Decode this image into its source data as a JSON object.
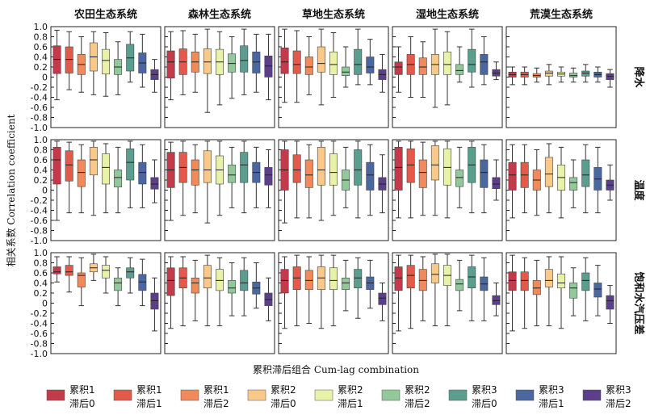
{
  "chart_data": {
    "type": "box",
    "col_titles": [
      "农田生态系统",
      "森林生态系统",
      "草地生态系统",
      "湿地生态系统",
      "荒漠生态系统"
    ],
    "row_labels": [
      "降水",
      "温度",
      "饱和水汽压差"
    ],
    "ylabel": "相关系数 Correlation coefficient",
    "xlabel": "累积滞后组合 Cum-lag combination",
    "ylim": [
      -1.0,
      1.0
    ],
    "yticks": [
      1.0,
      0.8,
      0.6,
      0.4,
      0.2,
      0,
      -0.2,
      -0.4,
      -0.6,
      -0.8,
      -1.0
    ],
    "ytick_labels": [
      "1.0",
      "0.8",
      "0.6",
      "0.4",
      "0.2",
      "0",
      "-0.2",
      "-0.4",
      "-0.6",
      "-0.8",
      "-1.0"
    ],
    "legend": [
      {
        "line1": "累积1",
        "line2": "滞后0",
        "color": "#c43a4b"
      },
      {
        "line1": "累积1",
        "line2": "滞后1",
        "color": "#e45a4a"
      },
      {
        "line1": "累积1",
        "line2": "滞后2",
        "color": "#f08a5c"
      },
      {
        "line1": "累积2",
        "line2": "滞后0",
        "color": "#f9c98a"
      },
      {
        "line1": "累积2",
        "line2": "滞后1",
        "color": "#e8f2a8"
      },
      {
        "line1": "累积2",
        "line2": "滞后2",
        "color": "#93c99a"
      },
      {
        "line1": "累积3",
        "line2": "滞后0",
        "color": "#5a9e8f"
      },
      {
        "line1": "累积3",
        "line2": "滞后1",
        "color": "#4a67a0"
      },
      {
        "line1": "累积3",
        "line2": "滞后2",
        "color": "#5c3f8a"
      }
    ],
    "panels": [
      [
        [
          [
            -0.45,
            0.07,
            0.35,
            0.62,
            0.93
          ],
          [
            -0.25,
            0.08,
            0.35,
            0.6,
            0.9
          ],
          [
            -0.3,
            0.05,
            0.25,
            0.45,
            0.8
          ],
          [
            -0.35,
            0.12,
            0.4,
            0.68,
            0.9
          ],
          [
            -0.38,
            0.06,
            0.33,
            0.55,
            0.88
          ],
          [
            -0.35,
            0.05,
            0.2,
            0.35,
            0.7
          ],
          [
            -0.1,
            0.12,
            0.38,
            0.65,
            0.9
          ],
          [
            -0.2,
            0.08,
            0.28,
            0.48,
            0.85
          ],
          [
            -0.3,
            -0.05,
            0.05,
            0.15,
            0.35
          ]
        ],
        [
          [
            -0.45,
            -0.02,
            0.3,
            0.52,
            0.9
          ],
          [
            -0.35,
            0.05,
            0.3,
            0.56,
            0.92
          ],
          [
            -0.3,
            0.1,
            0.3,
            0.5,
            0.85
          ],
          [
            -0.7,
            0.07,
            0.3,
            0.56,
            0.95
          ],
          [
            -0.55,
            0.05,
            0.3,
            0.55,
            0.9
          ],
          [
            -0.42,
            0.1,
            0.27,
            0.46,
            0.8
          ],
          [
            -0.35,
            0.1,
            0.33,
            0.62,
            0.95
          ],
          [
            -0.3,
            0.08,
            0.3,
            0.5,
            0.85
          ],
          [
            -0.45,
            0.0,
            0.22,
            0.42,
            0.85
          ]
        ],
        [
          [
            -0.5,
            0.07,
            0.3,
            0.58,
            0.95
          ],
          [
            -0.5,
            0.07,
            0.25,
            0.52,
            0.92
          ],
          [
            -0.35,
            0.05,
            0.2,
            0.4,
            0.8
          ],
          [
            -0.55,
            0.1,
            0.27,
            0.6,
            0.95
          ],
          [
            -0.4,
            0.05,
            0.25,
            0.5,
            0.88
          ],
          [
            -0.2,
            0.03,
            0.1,
            0.2,
            0.6
          ],
          [
            -0.15,
            0.05,
            0.25,
            0.55,
            0.95
          ],
          [
            -0.15,
            0.08,
            0.2,
            0.4,
            0.75
          ],
          [
            -0.3,
            -0.05,
            0.05,
            0.15,
            0.45
          ]
        ],
        [
          [
            -0.3,
            0.05,
            0.2,
            0.3,
            0.6
          ],
          [
            -0.4,
            0.05,
            0.25,
            0.45,
            0.8
          ],
          [
            -0.4,
            0.05,
            0.2,
            0.38,
            0.7
          ],
          [
            -0.6,
            0.05,
            0.25,
            0.45,
            0.95
          ],
          [
            -0.55,
            0.05,
            0.25,
            0.5,
            0.9
          ],
          [
            -0.1,
            0.05,
            0.13,
            0.25,
            0.6
          ],
          [
            -0.2,
            0.1,
            0.25,
            0.55,
            0.95
          ],
          [
            -0.15,
            0.05,
            0.3,
            0.45,
            0.8
          ],
          [
            -0.05,
            0.02,
            0.08,
            0.15,
            0.3
          ]
        ],
        [
          [
            -0.15,
            0.0,
            0.05,
            0.1,
            0.2
          ],
          [
            -0.15,
            0.0,
            0.05,
            0.1,
            0.2
          ],
          [
            -0.1,
            0.0,
            0.03,
            0.07,
            0.18
          ],
          [
            -0.15,
            0.02,
            0.08,
            0.12,
            0.25
          ],
          [
            -0.1,
            0.02,
            0.06,
            0.1,
            0.2
          ],
          [
            -0.1,
            0.0,
            0.03,
            0.08,
            0.18
          ],
          [
            -0.1,
            0.02,
            0.08,
            0.12,
            0.25
          ],
          [
            -0.1,
            0.0,
            0.05,
            0.1,
            0.2
          ],
          [
            -0.2,
            -0.05,
            0.02,
            0.07,
            0.15
          ]
        ]
      ],
      [
        [
          [
            -0.6,
            0.12,
            0.6,
            0.85,
            0.97
          ],
          [
            -0.45,
            0.18,
            0.5,
            0.78,
            0.95
          ],
          [
            -0.45,
            0.07,
            0.35,
            0.6,
            0.9
          ],
          [
            -0.5,
            0.3,
            0.6,
            0.85,
            0.97
          ],
          [
            -0.45,
            0.12,
            0.45,
            0.72,
            0.92
          ],
          [
            -0.45,
            0.06,
            0.25,
            0.4,
            0.85
          ],
          [
            -0.35,
            0.2,
            0.55,
            0.82,
            0.97
          ],
          [
            -0.35,
            0.12,
            0.35,
            0.55,
            0.9
          ],
          [
            -0.25,
            0.02,
            0.12,
            0.25,
            0.6
          ]
        ],
        [
          [
            -0.6,
            0.05,
            0.4,
            0.75,
            0.95
          ],
          [
            -0.5,
            0.15,
            0.45,
            0.75,
            0.97
          ],
          [
            -0.45,
            0.1,
            0.4,
            0.6,
            0.9
          ],
          [
            -0.65,
            0.15,
            0.4,
            0.78,
            0.97
          ],
          [
            -0.5,
            0.12,
            0.4,
            0.68,
            0.97
          ],
          [
            -0.35,
            0.15,
            0.3,
            0.5,
            0.85
          ],
          [
            -0.45,
            0.15,
            0.5,
            0.75,
            0.97
          ],
          [
            -0.35,
            0.15,
            0.35,
            0.55,
            0.85
          ],
          [
            -0.35,
            0.1,
            0.3,
            0.45,
            0.8
          ]
        ],
        [
          [
            -0.65,
            0.0,
            0.4,
            0.8,
            0.97
          ],
          [
            -0.55,
            0.15,
            0.4,
            0.7,
            0.97
          ],
          [
            -0.55,
            0.05,
            0.3,
            0.6,
            0.9
          ],
          [
            -0.6,
            0.1,
            0.4,
            0.85,
            0.97
          ],
          [
            -0.5,
            0.1,
            0.35,
            0.72,
            0.97
          ],
          [
            -0.35,
            0.0,
            0.2,
            0.4,
            0.85
          ],
          [
            -0.55,
            0.1,
            0.4,
            0.8,
            0.97
          ],
          [
            -0.5,
            0.0,
            0.3,
            0.55,
            0.9
          ],
          [
            -0.45,
            0.0,
            0.12,
            0.25,
            0.7
          ]
        ],
        [
          [
            -0.55,
            0.0,
            0.45,
            0.85,
            0.97
          ],
          [
            -0.55,
            0.15,
            0.5,
            0.82,
            0.97
          ],
          [
            -0.5,
            0.05,
            0.35,
            0.6,
            0.95
          ],
          [
            -0.5,
            0.2,
            0.5,
            0.88,
            0.97
          ],
          [
            -0.55,
            0.1,
            0.45,
            0.82,
            0.97
          ],
          [
            -0.35,
            0.07,
            0.25,
            0.4,
            0.85
          ],
          [
            -0.45,
            0.15,
            0.5,
            0.85,
            0.97
          ],
          [
            -0.45,
            0.05,
            0.35,
            0.6,
            0.9
          ],
          [
            -0.2,
            0.03,
            0.12,
            0.25,
            0.6
          ]
        ],
        [
          [
            -0.55,
            0.0,
            0.3,
            0.55,
            0.9
          ],
          [
            -0.45,
            0.05,
            0.3,
            0.55,
            0.9
          ],
          [
            -0.5,
            0.0,
            0.2,
            0.4,
            0.8
          ],
          [
            -0.45,
            0.07,
            0.32,
            0.65,
            0.92
          ],
          [
            -0.55,
            0.0,
            0.25,
            0.5,
            0.85
          ],
          [
            -0.35,
            0.0,
            0.15,
            0.25,
            0.6
          ],
          [
            -0.45,
            0.07,
            0.3,
            0.6,
            0.9
          ],
          [
            -0.45,
            0.0,
            0.22,
            0.45,
            0.85
          ],
          [
            -0.2,
            0.0,
            0.1,
            0.2,
            0.5
          ]
        ]
      ],
      [
        [
          [
            0.42,
            0.58,
            0.62,
            0.72,
            0.92
          ],
          [
            0.22,
            0.55,
            0.62,
            0.75,
            0.92
          ],
          [
            -0.05,
            0.32,
            0.55,
            0.6,
            0.9
          ],
          [
            0.45,
            0.62,
            0.7,
            0.78,
            0.97
          ],
          [
            0.2,
            0.5,
            0.65,
            0.75,
            0.92
          ],
          [
            -0.05,
            0.25,
            0.4,
            0.5,
            0.7
          ],
          [
            0.2,
            0.5,
            0.62,
            0.7,
            0.9
          ],
          [
            -0.05,
            0.25,
            0.42,
            0.57,
            0.87
          ],
          [
            -0.55,
            -0.12,
            0.05,
            0.2,
            0.5
          ]
        ],
        [
          [
            -0.5,
            0.15,
            0.45,
            0.7,
            0.92
          ],
          [
            -0.45,
            0.3,
            0.5,
            0.7,
            0.92
          ],
          [
            -0.35,
            0.2,
            0.4,
            0.5,
            0.85
          ],
          [
            -0.45,
            0.3,
            0.5,
            0.75,
            0.95
          ],
          [
            -0.45,
            0.25,
            0.45,
            0.67,
            0.9
          ],
          [
            -0.25,
            0.2,
            0.3,
            0.45,
            0.8
          ],
          [
            -0.25,
            0.25,
            0.4,
            0.65,
            0.9
          ],
          [
            -0.1,
            0.18,
            0.3,
            0.42,
            0.8
          ],
          [
            -0.35,
            -0.05,
            0.07,
            0.2,
            0.5
          ]
        ],
        [
          [
            -0.5,
            0.2,
            0.45,
            0.67,
            0.92
          ],
          [
            -0.45,
            0.27,
            0.5,
            0.72,
            0.95
          ],
          [
            -0.4,
            0.27,
            0.45,
            0.65,
            0.92
          ],
          [
            -0.5,
            0.27,
            0.5,
            0.72,
            0.95
          ],
          [
            -0.45,
            0.27,
            0.45,
            0.7,
            0.95
          ],
          [
            -0.15,
            0.27,
            0.4,
            0.5,
            0.85
          ],
          [
            -0.3,
            0.3,
            0.5,
            0.67,
            0.9
          ],
          [
            -0.1,
            0.27,
            0.4,
            0.52,
            0.85
          ],
          [
            -0.35,
            -0.03,
            0.1,
            0.2,
            0.4
          ]
        ],
        [
          [
            -0.55,
            0.25,
            0.5,
            0.72,
            0.95
          ],
          [
            -0.5,
            0.3,
            0.55,
            0.75,
            0.95
          ],
          [
            -0.35,
            0.25,
            0.45,
            0.67,
            0.92
          ],
          [
            -0.45,
            0.4,
            0.57,
            0.78,
            0.97
          ],
          [
            -0.45,
            0.35,
            0.55,
            0.75,
            0.97
          ],
          [
            -0.15,
            0.25,
            0.38,
            0.47,
            0.85
          ],
          [
            -0.35,
            0.3,
            0.52,
            0.72,
            0.95
          ],
          [
            -0.35,
            0.25,
            0.38,
            0.52,
            0.9
          ],
          [
            -0.25,
            -0.03,
            0.05,
            0.15,
            0.4
          ]
        ],
        [
          [
            -0.55,
            0.25,
            0.45,
            0.62,
            0.95
          ],
          [
            -0.5,
            0.25,
            0.45,
            0.62,
            0.9
          ],
          [
            -0.45,
            0.17,
            0.3,
            0.45,
            0.85
          ],
          [
            -0.45,
            0.32,
            0.45,
            0.67,
            0.92
          ],
          [
            -0.5,
            0.3,
            0.4,
            0.58,
            0.92
          ],
          [
            -0.25,
            0.1,
            0.3,
            0.4,
            0.7
          ],
          [
            -0.35,
            0.25,
            0.45,
            0.6,
            0.9
          ],
          [
            -0.25,
            0.12,
            0.28,
            0.4,
            0.75
          ],
          [
            -0.4,
            -0.12,
            0.05,
            0.15,
            0.35
          ]
        ]
      ]
    ]
  }
}
